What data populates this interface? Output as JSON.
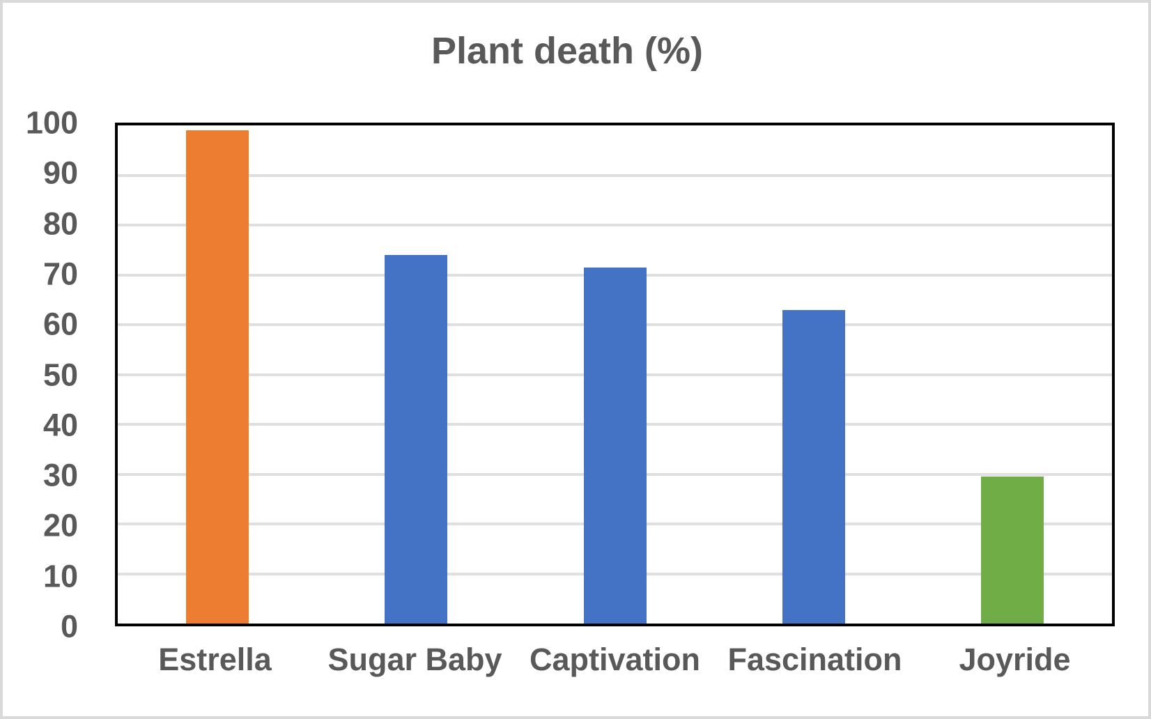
{
  "chart_data": {
    "type": "bar",
    "title": "Plant death (%)",
    "categories": [
      "Estrella",
      "Sugar Baby",
      "Captivation",
      "Fascination",
      "Joyride"
    ],
    "values": [
      99,
      74,
      71.5,
      63,
      29.5
    ],
    "bar_colors": [
      "#ED7D31",
      "#4472C4",
      "#4472C4",
      "#4472C4",
      "#70AD47"
    ],
    "xlabel": "",
    "ylabel": "",
    "ylim": [
      0,
      100
    ],
    "ytick_step": 10,
    "ytick_labels": [
      "0",
      "10",
      "20",
      "30",
      "40",
      "50",
      "60",
      "70",
      "80",
      "90",
      "100"
    ],
    "grid": "horizontal",
    "legend_position": "none",
    "colors": {
      "title_text": "#595959",
      "axis_text": "#595959",
      "gridline": "#DFDFDF",
      "plot_border": "#000000",
      "outer_border": "#D9D9D9",
      "background": "#FFFFFF"
    }
  }
}
